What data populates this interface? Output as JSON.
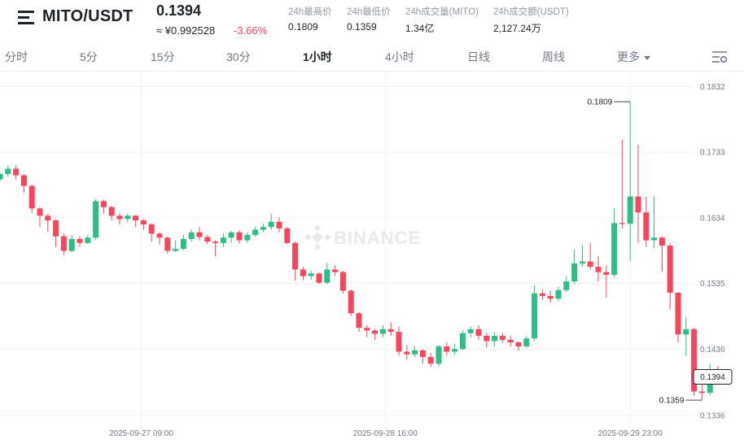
{
  "header": {
    "menu_icon": "menu-icon",
    "pair": "MITO/USDT",
    "price": "0.1394",
    "approx": "≈ ¥0.992528",
    "change": "-3.66%",
    "stats": [
      {
        "label": "24h最高价",
        "value": "0.1809"
      },
      {
        "label": "24h最低价",
        "value": "0.1359"
      },
      {
        "label": "24h成交量(MITO)",
        "value": "1.34亿"
      },
      {
        "label": "24h成交额(USDT)",
        "value": "2,127.24万"
      }
    ]
  },
  "tabs": [
    {
      "label": "分时",
      "active": false
    },
    {
      "label": "5分",
      "active": false
    },
    {
      "label": "15分",
      "active": false
    },
    {
      "label": "30分",
      "active": false
    },
    {
      "label": "1小时",
      "active": true
    },
    {
      "label": "4小时",
      "active": false
    },
    {
      "label": "日线",
      "active": false
    },
    {
      "label": "周线",
      "active": false
    },
    {
      "label": "更多",
      "active": false
    }
  ],
  "settings_icon": "chart-settings-icon",
  "colors": {
    "up": "#2ebd85",
    "down": "#f6465d",
    "grid": "#f0f1f3"
  },
  "chart_data": {
    "type": "candlestick",
    "watermark": "BINANCE",
    "y_ticks": [
      "0.1832",
      "0.1733",
      "0.1634",
      "0.1535",
      "0.1436",
      "0.1336"
    ],
    "ylim": [
      0.1326,
      0.1841
    ],
    "x_ticks": [
      {
        "label": "2025-09-27 09:00",
        "index": 17.7
      },
      {
        "label": "2025-09-28 16:00",
        "index": 48.3
      },
      {
        "label": "2025-09-29 23:00",
        "index": 79.0
      }
    ],
    "last_price": "0.1394",
    "high_label": "0.1809",
    "low_label": "0.1359",
    "candles": [
      [
        0.1692,
        0.17,
        0.1702,
        0.1689
      ],
      [
        0.17,
        0.1708,
        0.1713,
        0.1696
      ],
      [
        0.1708,
        0.1698,
        0.1713,
        0.1692
      ],
      [
        0.1698,
        0.1682,
        0.17,
        0.1672
      ],
      [
        0.1682,
        0.1648,
        0.1684,
        0.1641
      ],
      [
        0.1648,
        0.1637,
        0.165,
        0.162
      ],
      [
        0.1637,
        0.163,
        0.164,
        0.1613
      ],
      [
        0.163,
        0.1606,
        0.1632,
        0.159
      ],
      [
        0.1606,
        0.1584,
        0.161,
        0.1578
      ],
      [
        0.1584,
        0.1602,
        0.1608,
        0.1582
      ],
      [
        0.1602,
        0.1596,
        0.1606,
        0.159
      ],
      [
        0.1596,
        0.1604,
        0.1608,
        0.1594
      ],
      [
        0.1604,
        0.1659,
        0.1662,
        0.16
      ],
      [
        0.1659,
        0.165,
        0.1661,
        0.164
      ],
      [
        0.165,
        0.1637,
        0.1652,
        0.163
      ],
      [
        0.1637,
        0.1632,
        0.1641,
        0.1624
      ],
      [
        0.1632,
        0.1637,
        0.164,
        0.1628
      ],
      [
        0.1637,
        0.163,
        0.1638,
        0.162
      ],
      [
        0.163,
        0.1624,
        0.1632,
        0.1616
      ],
      [
        0.1624,
        0.161,
        0.1626,
        0.1598
      ],
      [
        0.161,
        0.1604,
        0.1612,
        0.1594
      ],
      [
        0.1604,
        0.1584,
        0.1606,
        0.158
      ],
      [
        0.1584,
        0.1587,
        0.16,
        0.1582
      ],
      [
        0.1587,
        0.1602,
        0.1608,
        0.1585
      ],
      [
        0.1602,
        0.1612,
        0.1616,
        0.1598
      ],
      [
        0.1612,
        0.1605,
        0.162,
        0.16
      ],
      [
        0.1605,
        0.1598,
        0.1608,
        0.1594
      ],
      [
        0.1598,
        0.1596,
        0.16,
        0.1576
      ],
      [
        0.1596,
        0.1604,
        0.161,
        0.159
      ],
      [
        0.1604,
        0.1612,
        0.1614,
        0.1596
      ],
      [
        0.1612,
        0.16,
        0.1615,
        0.1595
      ],
      [
        0.16,
        0.1608,
        0.1612,
        0.1596
      ],
      [
        0.1608,
        0.1616,
        0.162,
        0.1605
      ],
      [
        0.1616,
        0.162,
        0.1625,
        0.1612
      ],
      [
        0.162,
        0.1628,
        0.164,
        0.1616
      ],
      [
        0.1628,
        0.1618,
        0.1634,
        0.1612
      ],
      [
        0.1618,
        0.1596,
        0.162,
        0.1594
      ],
      [
        0.1596,
        0.1556,
        0.1598,
        0.1539
      ],
      [
        0.1556,
        0.1546,
        0.156,
        0.154
      ],
      [
        0.1546,
        0.155,
        0.1554,
        0.154
      ],
      [
        0.155,
        0.1536,
        0.1552,
        0.1534
      ],
      [
        0.1536,
        0.1556,
        0.1566,
        0.1534
      ],
      [
        0.1556,
        0.1552,
        0.1562,
        0.1546
      ],
      [
        0.1552,
        0.1524,
        0.1554,
        0.152
      ],
      [
        0.1524,
        0.149,
        0.1526,
        0.1486
      ],
      [
        0.149,
        0.1468,
        0.1492,
        0.1462
      ],
      [
        0.1468,
        0.1464,
        0.1472,
        0.1454
      ],
      [
        0.1464,
        0.1459,
        0.1466,
        0.145
      ],
      [
        0.1459,
        0.1466,
        0.1472,
        0.1454
      ],
      [
        0.1466,
        0.1462,
        0.1476,
        0.1456
      ],
      [
        0.1462,
        0.1432,
        0.147,
        0.1426
      ],
      [
        0.1432,
        0.1428,
        0.1442,
        0.142
      ],
      [
        0.1428,
        0.1434,
        0.144,
        0.1424
      ],
      [
        0.1434,
        0.1424,
        0.1436,
        0.1414
      ],
      [
        0.1424,
        0.1414,
        0.143,
        0.1409
      ],
      [
        0.1414,
        0.144,
        0.1442,
        0.141
      ],
      [
        0.144,
        0.1432,
        0.1446,
        0.1426
      ],
      [
        0.1432,
        0.1436,
        0.1444,
        0.1428
      ],
      [
        0.1436,
        0.146,
        0.1464,
        0.1434
      ],
      [
        0.146,
        0.1466,
        0.147,
        0.1454
      ],
      [
        0.1466,
        0.1456,
        0.1472,
        0.145
      ],
      [
        0.1456,
        0.1448,
        0.146,
        0.1438
      ],
      [
        0.1448,
        0.1456,
        0.1462,
        0.144
      ],
      [
        0.1456,
        0.145,
        0.146,
        0.1446
      ],
      [
        0.145,
        0.1446,
        0.1456,
        0.144
      ],
      [
        0.1446,
        0.144,
        0.1448,
        0.1434
      ],
      [
        0.144,
        0.1452,
        0.1456,
        0.1438
      ],
      [
        0.1452,
        0.152,
        0.1532,
        0.1448
      ],
      [
        0.152,
        0.1516,
        0.1526,
        0.151
      ],
      [
        0.1516,
        0.1512,
        0.1524,
        0.1506
      ],
      [
        0.1512,
        0.1525,
        0.153,
        0.1508
      ],
      [
        0.1525,
        0.1538,
        0.1546,
        0.1522
      ],
      [
        0.1538,
        0.1565,
        0.1586,
        0.1534
      ],
      [
        0.1565,
        0.1568,
        0.1592,
        0.156
      ],
      [
        0.1568,
        0.156,
        0.1596,
        0.1556
      ],
      [
        0.156,
        0.1552,
        0.1576,
        0.1538
      ],
      [
        0.1552,
        0.1548,
        0.1562,
        0.1514
      ],
      [
        0.1548,
        0.1626,
        0.1648,
        0.1544
      ],
      [
        0.1626,
        0.1625,
        0.1752,
        0.1618
      ],
      [
        0.1625,
        0.1666,
        0.1809,
        0.1569
      ],
      [
        0.1666,
        0.1642,
        0.1744,
        0.1596
      ],
      [
        0.1642,
        0.16,
        0.1666,
        0.159
      ],
      [
        0.16,
        0.1604,
        0.1666,
        0.1588
      ],
      [
        0.1604,
        0.1592,
        0.1606,
        0.1553
      ],
      [
        0.1592,
        0.1521,
        0.1596,
        0.1496
      ],
      [
        0.1521,
        0.1458,
        0.1522,
        0.1446
      ],
      [
        0.1458,
        0.1466,
        0.1484,
        0.1426
      ],
      [
        0.1466,
        0.1372,
        0.1468,
        0.1366
      ],
      [
        0.1372,
        0.137,
        0.1382,
        0.1359
      ],
      [
        0.137,
        0.1404,
        0.1414,
        0.1366
      ],
      [
        0.1404,
        0.1398,
        0.141,
        0.1394
      ],
      [
        0.1398,
        0.1394,
        0.1402,
        0.1392
      ]
    ]
  }
}
